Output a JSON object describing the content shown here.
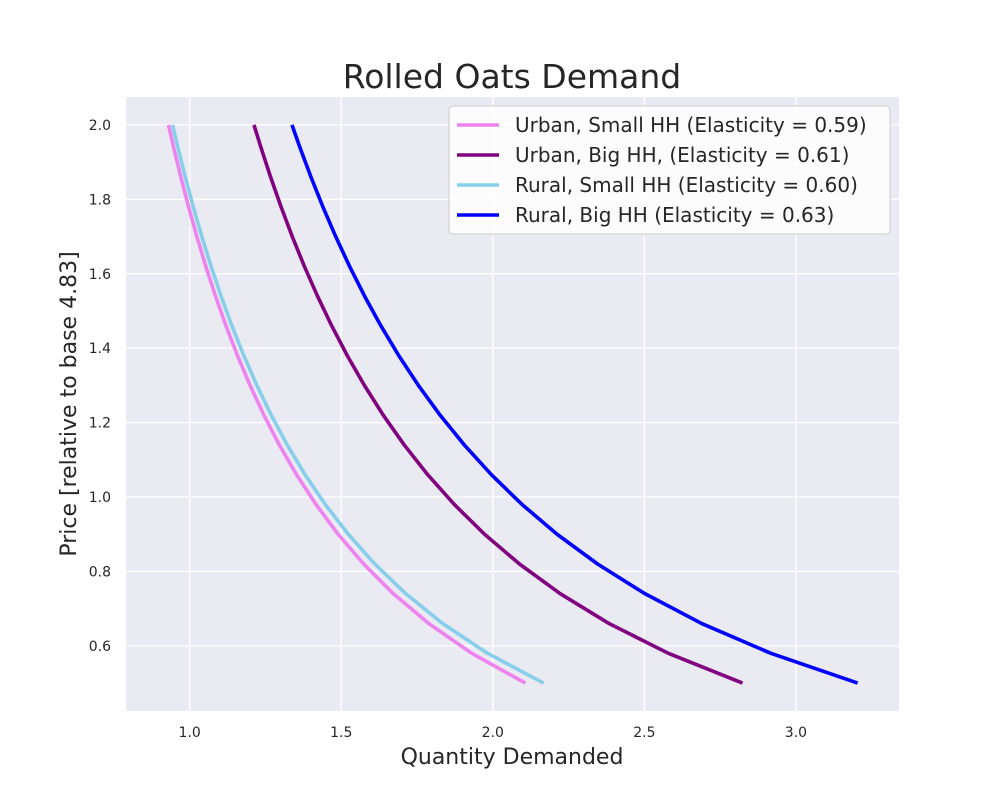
{
  "chart_data": {
    "type": "line",
    "title": "Rolled Oats Demand",
    "xlabel": "Quantity Demanded",
    "ylabel": "Price [relative to base 4.83]",
    "xlim": [
      0.79,
      3.34
    ],
    "ylim": [
      0.425,
      2.075
    ],
    "xticks": [
      1.0,
      1.5,
      2.0,
      2.5,
      3.0
    ],
    "xtick_labels": [
      "1.0",
      "1.5",
      "2.0",
      "2.5",
      "3.0"
    ],
    "yticks": [
      0.6,
      0.8,
      1.0,
      1.2,
      1.4,
      1.6,
      1.8,
      2.0
    ],
    "ytick_labels": [
      "0.6",
      "0.8",
      "1.0",
      "1.2",
      "1.4",
      "1.6",
      "1.8",
      "2.0"
    ],
    "grid": true,
    "legend_position": "top-right",
    "background_color": "#eaeaf2",
    "grid_color": "#ffffff",
    "price_points": [
      0.5,
      0.58,
      0.66,
      0.74,
      0.82,
      0.9,
      0.98,
      1.06,
      1.14,
      1.22,
      1.3,
      1.38,
      1.46,
      1.54,
      1.62,
      1.7,
      1.78,
      1.86,
      1.94,
      2.0
    ],
    "series": [
      {
        "name": "Urban, Small HH (Elasticity = 0.59)",
        "color": "#ee82ee",
        "q_at_price_1": 1.4,
        "elasticity": 0.59
      },
      {
        "name": "Urban, Big HH, (Elasticity = 0.61)",
        "color": "#800080",
        "q_at_price_1": 1.85,
        "elasticity": 0.61
      },
      {
        "name": "Rural, Small HH (Elasticity = 0.60)",
        "color": "#87ceeb",
        "q_at_price_1": 1.43,
        "elasticity": 0.6
      },
      {
        "name": "Rural, Big HH (Elasticity = 0.63)",
        "color": "#0000ff",
        "q_at_price_1": 2.07,
        "elasticity": 0.63
      }
    ]
  }
}
